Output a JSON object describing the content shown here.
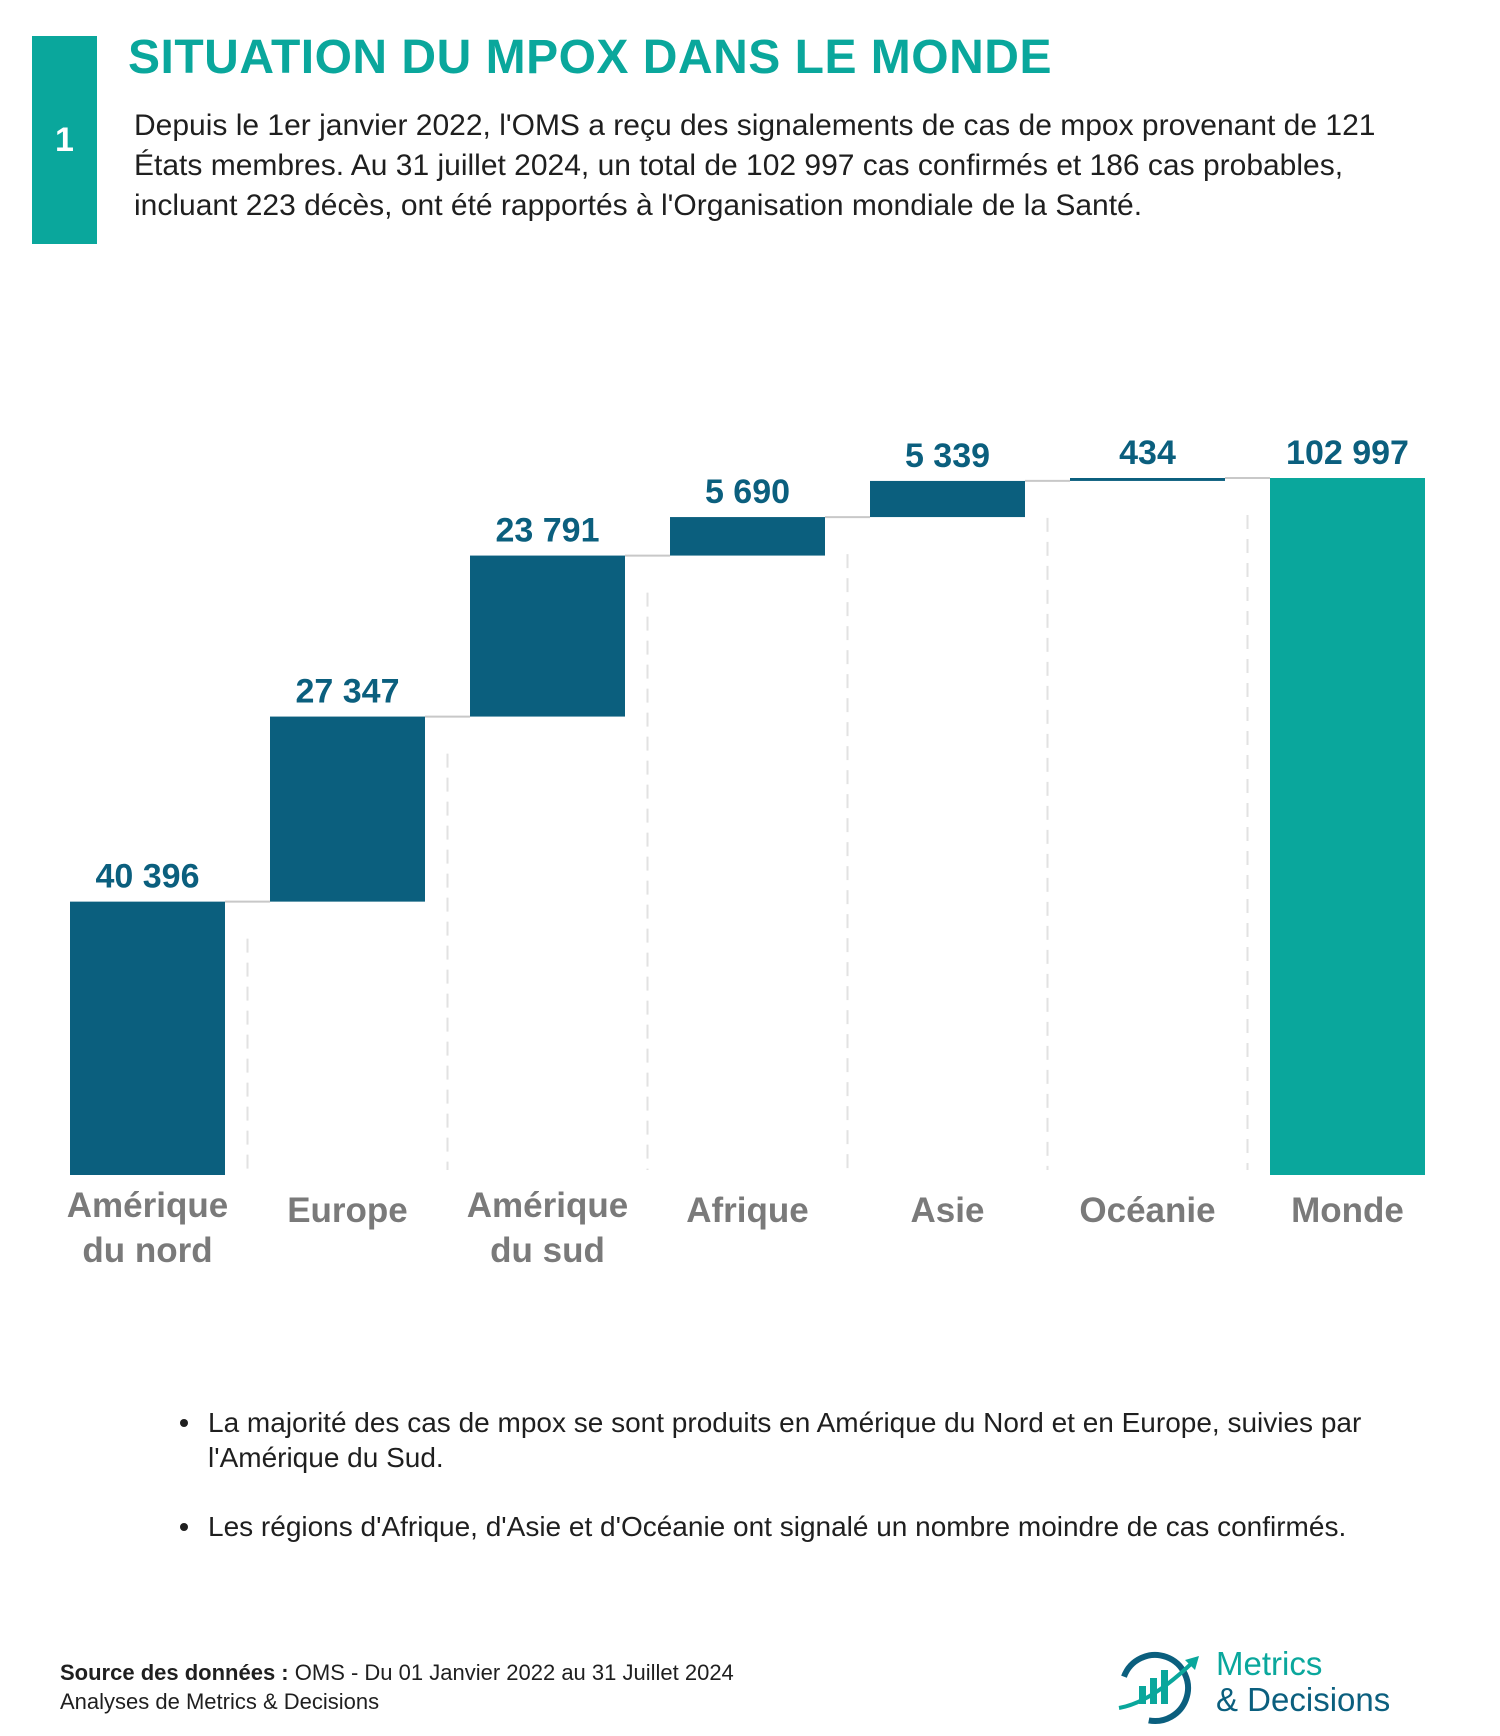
{
  "section_number": "1",
  "title": "SITUATION DU MPOX DANS LE MONDE",
  "intro": "Depuis le 1er janvier 2022, l'OMS a reçu des signalements de cas de mpox provenant de 121 États membres. Au 31 juillet 2024, un total de 102 997 cas confirmés et 186 cas probables, incluant 223 décès, ont été rapportés à l'Organisation mondiale de la Santé.",
  "colors": {
    "accent": "#0aa79c",
    "bar": "#0b5f7e",
    "category_label": "#7a7a7a",
    "connector": "#c8c8c8"
  },
  "chart_data": {
    "type": "bar",
    "subtype": "waterfall",
    "categories": [
      "Amérique du nord",
      "Europe",
      "Amérique du sud",
      "Afrique",
      "Asie",
      "Océanie",
      "Monde"
    ],
    "category_lines": [
      [
        "Amérique",
        "du nord"
      ],
      [
        "Europe"
      ],
      [
        "Amérique",
        "du sud"
      ],
      [
        "Afrique"
      ],
      [
        "Asie"
      ],
      [
        "Océanie"
      ],
      [
        "Monde"
      ]
    ],
    "values": [
      40396,
      27347,
      23791,
      5690,
      5339,
      434,
      102997
    ],
    "value_labels": [
      "40 396",
      "27 347",
      "23 791",
      "5 690",
      "5 339",
      "434",
      "102 997"
    ],
    "total_index": 6,
    "ylim": [
      0,
      102997
    ],
    "title": "",
    "xlabel": "",
    "ylabel": "",
    "grid": false,
    "legend": "none"
  },
  "bullets": [
    "La majorité des cas de mpox se sont produits en Amérique du Nord et en Europe, suivies par l'Amérique du Sud.",
    "Les régions d'Afrique, d'Asie et d'Océanie ont signalé un nombre moindre de cas confirmés."
  ],
  "source": {
    "label": "Source des données :",
    "text": "OMS - Du 01 Janvier 2022 au 31 Juillet 2024",
    "analysis": "Analyses de Metrics & Decisions"
  },
  "logo": {
    "line1": "Metrics",
    "line2": "& Decisions",
    "icon": "growth-chart-logo-icon"
  }
}
